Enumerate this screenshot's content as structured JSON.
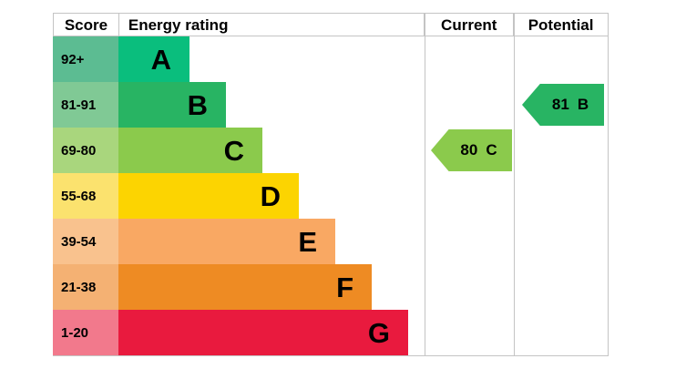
{
  "header": {
    "score": "Score",
    "energy_rating": "Energy rating",
    "current": "Current",
    "potential": "Potential"
  },
  "chart_data": {
    "type": "bar",
    "title": "Energy rating (EPC bands)",
    "bands": [
      {
        "letter": "A",
        "score_range": "92+",
        "color": "#0abe7d",
        "tint": "#5cbc92"
      },
      {
        "letter": "B",
        "score_range": "81-91",
        "color": "#28b463",
        "tint": "#80c995"
      },
      {
        "letter": "C",
        "score_range": "69-80",
        "color": "#8bca4c",
        "tint": "#a9d67d"
      },
      {
        "letter": "D",
        "score_range": "55-68",
        "color": "#fcd401",
        "tint": "#fbe26e"
      },
      {
        "letter": "E",
        "score_range": "39-54",
        "color": "#f9a863",
        "tint": "#f9c28e"
      },
      {
        "letter": "F",
        "score_range": "21-38",
        "color": "#ee8b23",
        "tint": "#f4b173"
      },
      {
        "letter": "G",
        "score_range": "1-20",
        "color": "#e91a3e",
        "tint": "#f2798c"
      }
    ],
    "current": {
      "value": 80,
      "band": "C",
      "color": "#8bca4c"
    },
    "potential": {
      "value": 81,
      "band": "B",
      "color": "#28b463"
    },
    "legend_position": "none",
    "grid": false
  }
}
